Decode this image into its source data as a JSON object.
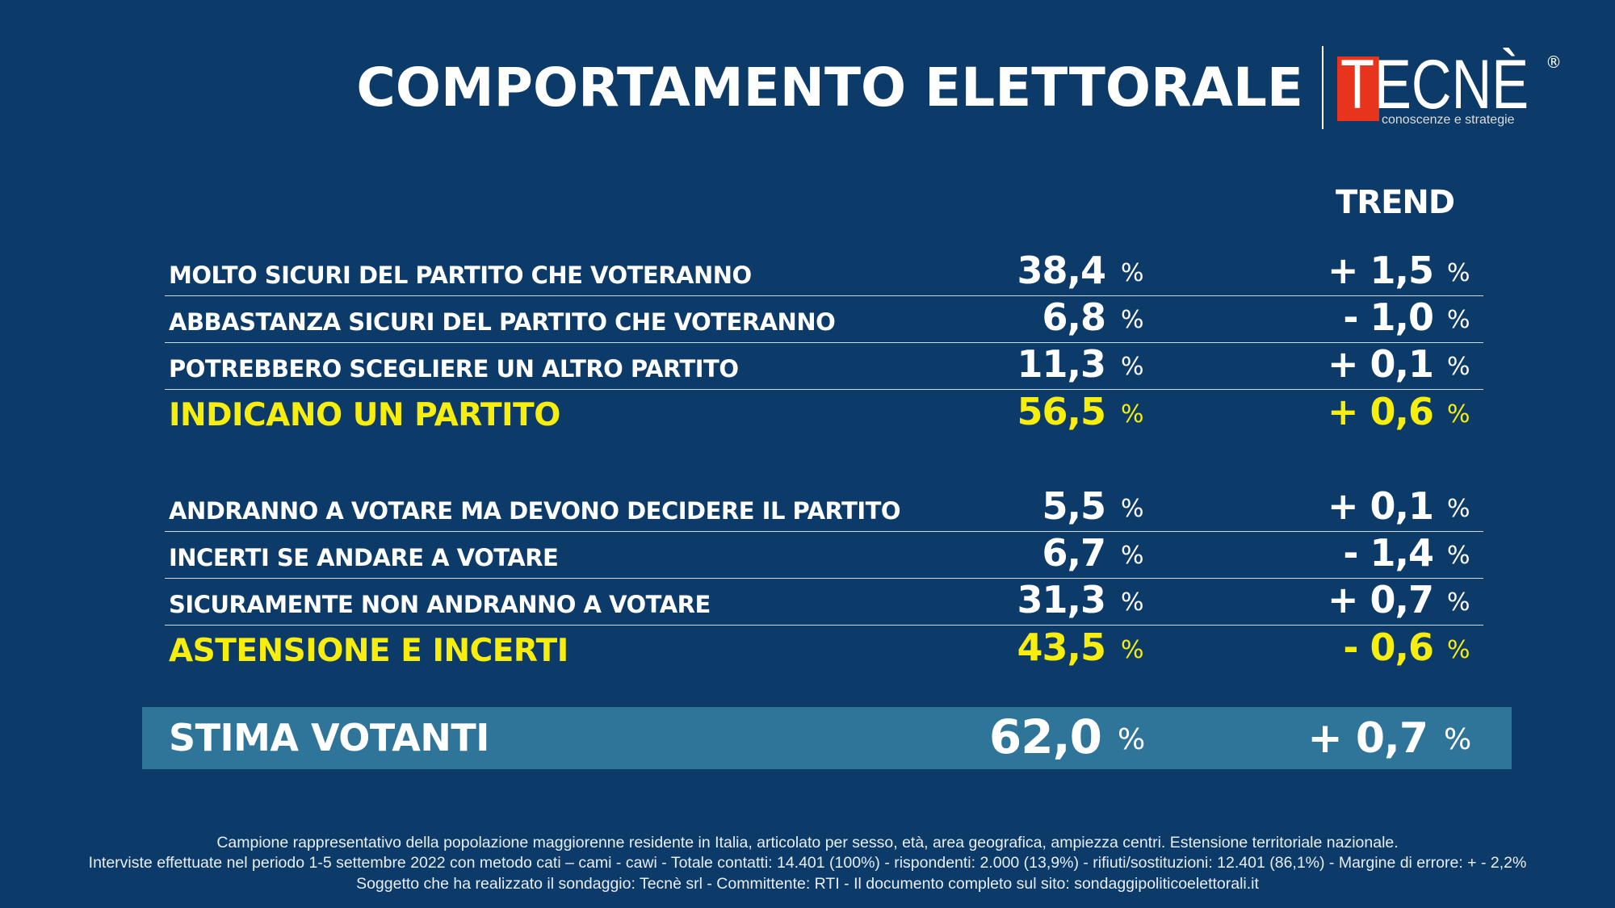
{
  "header": {
    "title": "COMPORTAMENTO ELETTORALE",
    "logo": {
      "word": "TECNÈ",
      "tagline": "conoscenze e strategie",
      "registered": "®"
    }
  },
  "trend_header": "TREND",
  "percent_sign": "%",
  "group1": [
    {
      "label": "MOLTO SICURI DEL PARTITO CHE VOTERANNO",
      "value": "38,4",
      "trend": "+ 1,5"
    },
    {
      "label": "ABBASTANZA SICURI DEL PARTITO CHE VOTERANNO",
      "value": "6,8",
      "trend": "- 1,0"
    },
    {
      "label": "POTREBBERO SCEGLIERE UN ALTRO PARTITO",
      "value": "11,3",
      "trend": "+ 0,1"
    },
    {
      "label": "INDICANO UN PARTITO",
      "value": "56,5",
      "trend": "+ 0,6"
    }
  ],
  "group2": [
    {
      "label": "ANDRANNO A VOTARE MA DEVONO DECIDERE IL PARTITO",
      "value": "5,5",
      "trend": "+ 0,1"
    },
    {
      "label": "INCERTI SE ANDARE A VOTARE",
      "value": "6,7",
      "trend": "- 1,4"
    },
    {
      "label": "SICURAMENTE NON ANDRANNO A VOTARE",
      "value": "31,3",
      "trend": "+ 0,7"
    },
    {
      "label": "ASTENSIONE E INCERTI",
      "value": "43,5",
      "trend": "- 0,6"
    }
  ],
  "total": {
    "label": "STIMA VOTANTI",
    "value": "62,0",
    "trend": "+ 0,7"
  },
  "footer": [
    "Campione rappresentativo della popolazione maggiorenne residente in Italia, articolato per sesso, età, area geografica, ampiezza centri. Estensione territoriale nazionale.",
    "Interviste effettuate nel periodo 1-5 settembre 2022 con metodo cati – cami - cawi - Totale contatti: 14.401 (100%) - rispondenti: 2.000 (13,9%) - rifiuti/sostituzioni: 12.401 (86,1%) - Margine di errore: + - 2,2%",
    "Soggetto che ha realizzato il sondaggio: Tecnè srl - Committente: RTI - Il documento completo sul sito: sondaggipoliticoelettorali.it"
  ],
  "colors": {
    "background": "#0c3a69",
    "highlight": "#f7ee0d",
    "total_bar": "#2f7499",
    "logo_red": "#e8341c"
  }
}
